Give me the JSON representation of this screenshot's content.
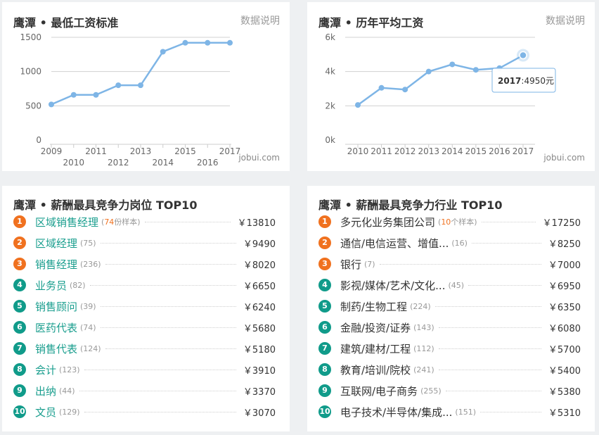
{
  "min_wage": {
    "title": "鹰潭 • 最低工资标准",
    "link": "数据说明",
    "watermark": "jobui.com",
    "chart_data": {
      "type": "line",
      "x": [
        "2009",
        "2010",
        "2011",
        "2012",
        "2013",
        "2014",
        "2015",
        "2016",
        "2017"
      ],
      "values": [
        520,
        660,
        660,
        800,
        800,
        1290,
        1420,
        1420,
        1420
      ],
      "ylim": [
        0,
        1500
      ],
      "yticks": [
        "0",
        "500",
        "1000",
        "1500"
      ],
      "grid": true,
      "color": "#7eb5e6"
    }
  },
  "avg_salary": {
    "title": "鹰潭 • 历年平均工资",
    "link": "数据说明",
    "watermark": "jobui.com",
    "tooltip_year": "2017",
    "tooltip_value": ":4950元",
    "chart_data": {
      "type": "line",
      "x": [
        "2010",
        "2011",
        "2012",
        "2013",
        "2014",
        "2015",
        "2016",
        "2017"
      ],
      "values": [
        2050,
        3050,
        2950,
        4000,
        4420,
        4100,
        4200,
        4950
      ],
      "ylim": [
        0,
        6000
      ],
      "yticks": [
        "0k",
        "2k",
        "4k",
        "6k"
      ],
      "grid": true,
      "color": "#7eb5e6"
    }
  },
  "top_jobs": {
    "title": "鹰潭 • 薪酬最具竞争力岗位 TOP10",
    "items": [
      {
        "rank": "1",
        "name": "区域销售经理",
        "sample_count": "74",
        "sample_suffix": "份样本",
        "salary": "￥13810"
      },
      {
        "rank": "2",
        "name": "区域经理",
        "sample": "(75)",
        "salary": "￥9490"
      },
      {
        "rank": "3",
        "name": "销售经理",
        "sample": "(236)",
        "salary": "￥8020"
      },
      {
        "rank": "4",
        "name": "业务员",
        "sample": "(82)",
        "salary": "￥6650"
      },
      {
        "rank": "5",
        "name": "销售顾问",
        "sample": "(39)",
        "salary": "￥6240"
      },
      {
        "rank": "6",
        "name": "医药代表",
        "sample": "(74)",
        "salary": "￥5680"
      },
      {
        "rank": "7",
        "name": "销售代表",
        "sample": "(124)",
        "salary": "￥5180"
      },
      {
        "rank": "8",
        "name": "会计",
        "sample": "(123)",
        "salary": "￥3910"
      },
      {
        "rank": "9",
        "name": "出纳",
        "sample": "(44)",
        "salary": "￥3370"
      },
      {
        "rank": "10",
        "name": "文员",
        "sample": "(129)",
        "salary": "￥3070"
      }
    ]
  },
  "top_industries": {
    "title": "鹰潭 • 薪酬最具竞争力行业 TOP10",
    "items": [
      {
        "rank": "1",
        "name": "多元化业务集团公司",
        "sample_count": "10",
        "sample_suffix": "个样本",
        "salary": "￥17250"
      },
      {
        "rank": "2",
        "name": "通信/电信运营、增值...",
        "sample": "(16)",
        "salary": "￥8250"
      },
      {
        "rank": "3",
        "name": "银行",
        "sample": "(7)",
        "salary": "￥7000"
      },
      {
        "rank": "4",
        "name": "影视/媒体/艺术/文化...",
        "sample": "(45)",
        "salary": "￥6950"
      },
      {
        "rank": "5",
        "name": "制药/生物工程",
        "sample": "(224)",
        "salary": "￥6350"
      },
      {
        "rank": "6",
        "name": "金融/投资/证券",
        "sample": "(143)",
        "salary": "￥6080"
      },
      {
        "rank": "7",
        "name": "建筑/建材/工程",
        "sample": "(112)",
        "salary": "￥5700"
      },
      {
        "rank": "8",
        "name": "教育/培训/院校",
        "sample": "(241)",
        "salary": "￥5400"
      },
      {
        "rank": "9",
        "name": "互联网/电子商务",
        "sample": "(255)",
        "salary": "￥5380"
      },
      {
        "rank": "10",
        "name": "电子技术/半导体/集成...",
        "sample": "(151)",
        "salary": "￥5310"
      }
    ]
  }
}
